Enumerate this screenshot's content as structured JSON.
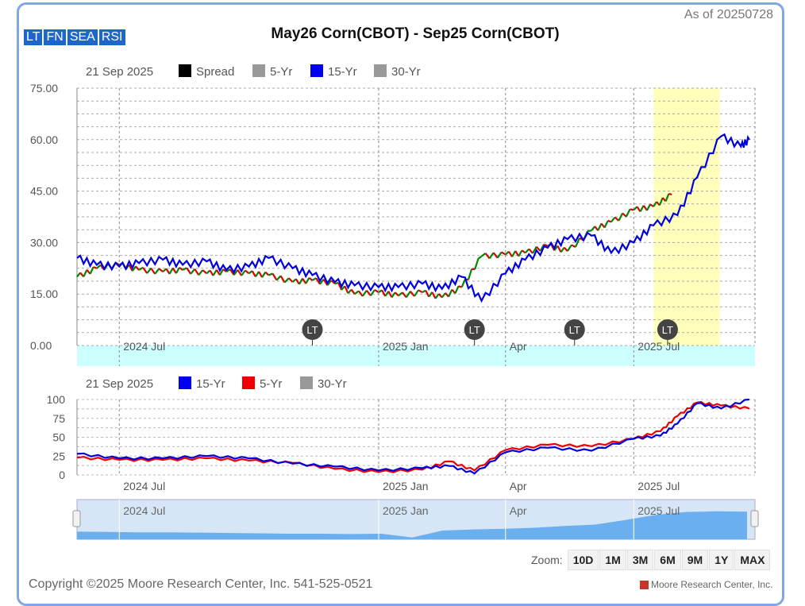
{
  "header": {
    "as_of": "As of 20250728",
    "title": "May26 Corn(CBOT) - Sep25 Corn(CBOT)",
    "tabs": [
      "LT",
      "FN",
      "SEA",
      "RSI"
    ]
  },
  "zoom": {
    "label": "Zoom:",
    "buttons": [
      "10D",
      "1M",
      "3M",
      "6M",
      "9M",
      "1Y",
      "MAX"
    ]
  },
  "footer": {
    "copyright": "Copyright ©2025 Moore Research Center, Inc. 541-525-0521",
    "brand": "Moore Research Center, Inc."
  },
  "colors": {
    "spread_up": "#008800",
    "spread_down": "#e00000",
    "fifteen_yr": "#0000dd",
    "five_yr": "#ee0000",
    "highlight": "#ffffbb",
    "baseline_band": "#ccffff",
    "navigator_fill": "#6ab0f0"
  },
  "chart_data": [
    {
      "type": "line",
      "legend": {
        "date": "21 Sep 2025",
        "items": [
          {
            "name": "Spread",
            "color": "#000000"
          },
          {
            "name": "5-Yr",
            "color": "#999999"
          },
          {
            "name": "15-Yr",
            "color": "#0000ee"
          },
          {
            "name": "30-Yr",
            "color": "#999999"
          }
        ]
      },
      "y_ticks": [
        "75.00",
        "60.00",
        "45.00",
        "30.00",
        "15.00",
        "0.00"
      ],
      "ylim": [
        0,
        75
      ],
      "x_ticks": [
        "2024 Jul",
        "2025 Jan",
        "Apr",
        "2025 Jul"
      ],
      "highlight_window": [
        "2025-07-15",
        "2025-08-31"
      ],
      "markers": [
        {
          "label": "LT",
          "date": "2024-11-15"
        },
        {
          "label": "LT",
          "date": "2025-03-10"
        },
        {
          "label": "LT",
          "date": "2025-05-20"
        },
        {
          "label": "LT",
          "date": "2025-07-25"
        }
      ],
      "series": [
        {
          "name": "Spread",
          "x": [
            "2024-06-01",
            "2024-06-15",
            "2024-07-01",
            "2024-07-15",
            "2024-08-01",
            "2024-08-15",
            "2024-09-01",
            "2024-09-15",
            "2024-10-01",
            "2024-10-15",
            "2024-11-01",
            "2024-11-15",
            "2024-12-01",
            "2024-12-15",
            "2025-01-01",
            "2025-01-15",
            "2025-02-01",
            "2025-02-15",
            "2025-03-01",
            "2025-03-15",
            "2025-04-01",
            "2025-04-15",
            "2025-05-01",
            "2025-05-15",
            "2025-06-01",
            "2025-06-15",
            "2025-07-01",
            "2025-07-15",
            "2025-07-28"
          ],
          "values": [
            20,
            22.5,
            23.5,
            22,
            21.5,
            22,
            21,
            21.5,
            21,
            20.5,
            18.5,
            19,
            18,
            15,
            15.5,
            14.5,
            15.5,
            14,
            17,
            26,
            26.5,
            27,
            29,
            27.5,
            33.5,
            36,
            39.5,
            40.5,
            44
          ]
        },
        {
          "name": "15-Yr",
          "x": [
            "2024-06-01",
            "2024-06-15",
            "2024-07-01",
            "2024-07-15",
            "2024-08-01",
            "2024-08-15",
            "2024-09-01",
            "2024-09-15",
            "2024-10-01",
            "2024-10-15",
            "2024-11-01",
            "2024-11-15",
            "2024-12-01",
            "2024-12-15",
            "2025-01-01",
            "2025-01-15",
            "2025-02-01",
            "2025-02-15",
            "2025-03-01",
            "2025-03-15",
            "2025-04-01",
            "2025-04-15",
            "2025-05-01",
            "2025-05-15",
            "2025-06-01",
            "2025-06-15",
            "2025-07-01",
            "2025-07-15",
            "2025-08-01",
            "2025-08-15",
            "2025-09-01",
            "2025-09-15",
            "2025-09-21"
          ],
          "values": [
            25.5,
            23.5,
            23,
            24,
            25,
            23.5,
            24.5,
            22,
            23,
            25.5,
            22.5,
            20.5,
            18.5,
            17.5,
            17,
            17,
            18,
            16.5,
            20,
            13,
            21,
            25,
            28.5,
            31,
            32,
            27,
            30,
            35,
            38,
            49,
            61,
            58,
            60
          ]
        }
      ]
    },
    {
      "type": "line",
      "legend": {
        "date": "21 Sep 2025",
        "items": [
          {
            "name": "15-Yr",
            "color": "#0000ee"
          },
          {
            "name": "5-Yr",
            "color": "#ee0000"
          },
          {
            "name": "30-Yr",
            "color": "#999999"
          }
        ]
      },
      "y_ticks": [
        "100",
        "75",
        "50",
        "25",
        "0"
      ],
      "ylim": [
        0,
        100
      ],
      "x_ticks": [
        "2024 Jul",
        "2025 Jan",
        "Apr",
        "2025 Jul"
      ],
      "series": [
        {
          "name": "15-Yr",
          "x": [
            "2024-06-01",
            "2024-07-01",
            "2024-08-01",
            "2024-09-01",
            "2024-10-01",
            "2024-11-01",
            "2024-12-01",
            "2025-01-01",
            "2025-02-01",
            "2025-02-20",
            "2025-03-10",
            "2025-04-01",
            "2025-05-01",
            "2025-06-01",
            "2025-07-01",
            "2025-07-20",
            "2025-08-01",
            "2025-08-15",
            "2025-09-01",
            "2025-09-21"
          ],
          "values": [
            28,
            22,
            22,
            25,
            22,
            15,
            11,
            6,
            9,
            12,
            2,
            30,
            36,
            32,
            48,
            52,
            68,
            95,
            88,
            100
          ]
        },
        {
          "name": "5-Yr",
          "x": [
            "2024-06-01",
            "2024-07-01",
            "2024-08-01",
            "2024-09-01",
            "2024-10-01",
            "2024-11-01",
            "2024-12-01",
            "2025-01-01",
            "2025-02-01",
            "2025-02-20",
            "2025-03-10",
            "2025-04-01",
            "2025-05-01",
            "2025-06-01",
            "2025-07-01",
            "2025-07-20",
            "2025-08-01",
            "2025-08-15",
            "2025-09-01",
            "2025-09-21"
          ],
          "values": [
            23,
            20,
            20,
            22,
            19,
            16,
            8,
            4,
            7,
            18,
            6,
            33,
            40,
            38,
            48,
            58,
            78,
            96,
            92,
            88
          ]
        }
      ]
    }
  ],
  "navigator": {
    "x_ticks": [
      "2024 Jul",
      "2025 Jan",
      "Apr",
      "2025 Jul"
    ],
    "values": [
      22,
      21,
      20,
      20,
      19,
      18,
      17,
      16,
      16,
      15,
      16,
      5,
      25,
      28,
      30,
      33,
      38,
      42,
      55,
      70,
      78,
      80,
      79
    ]
  }
}
